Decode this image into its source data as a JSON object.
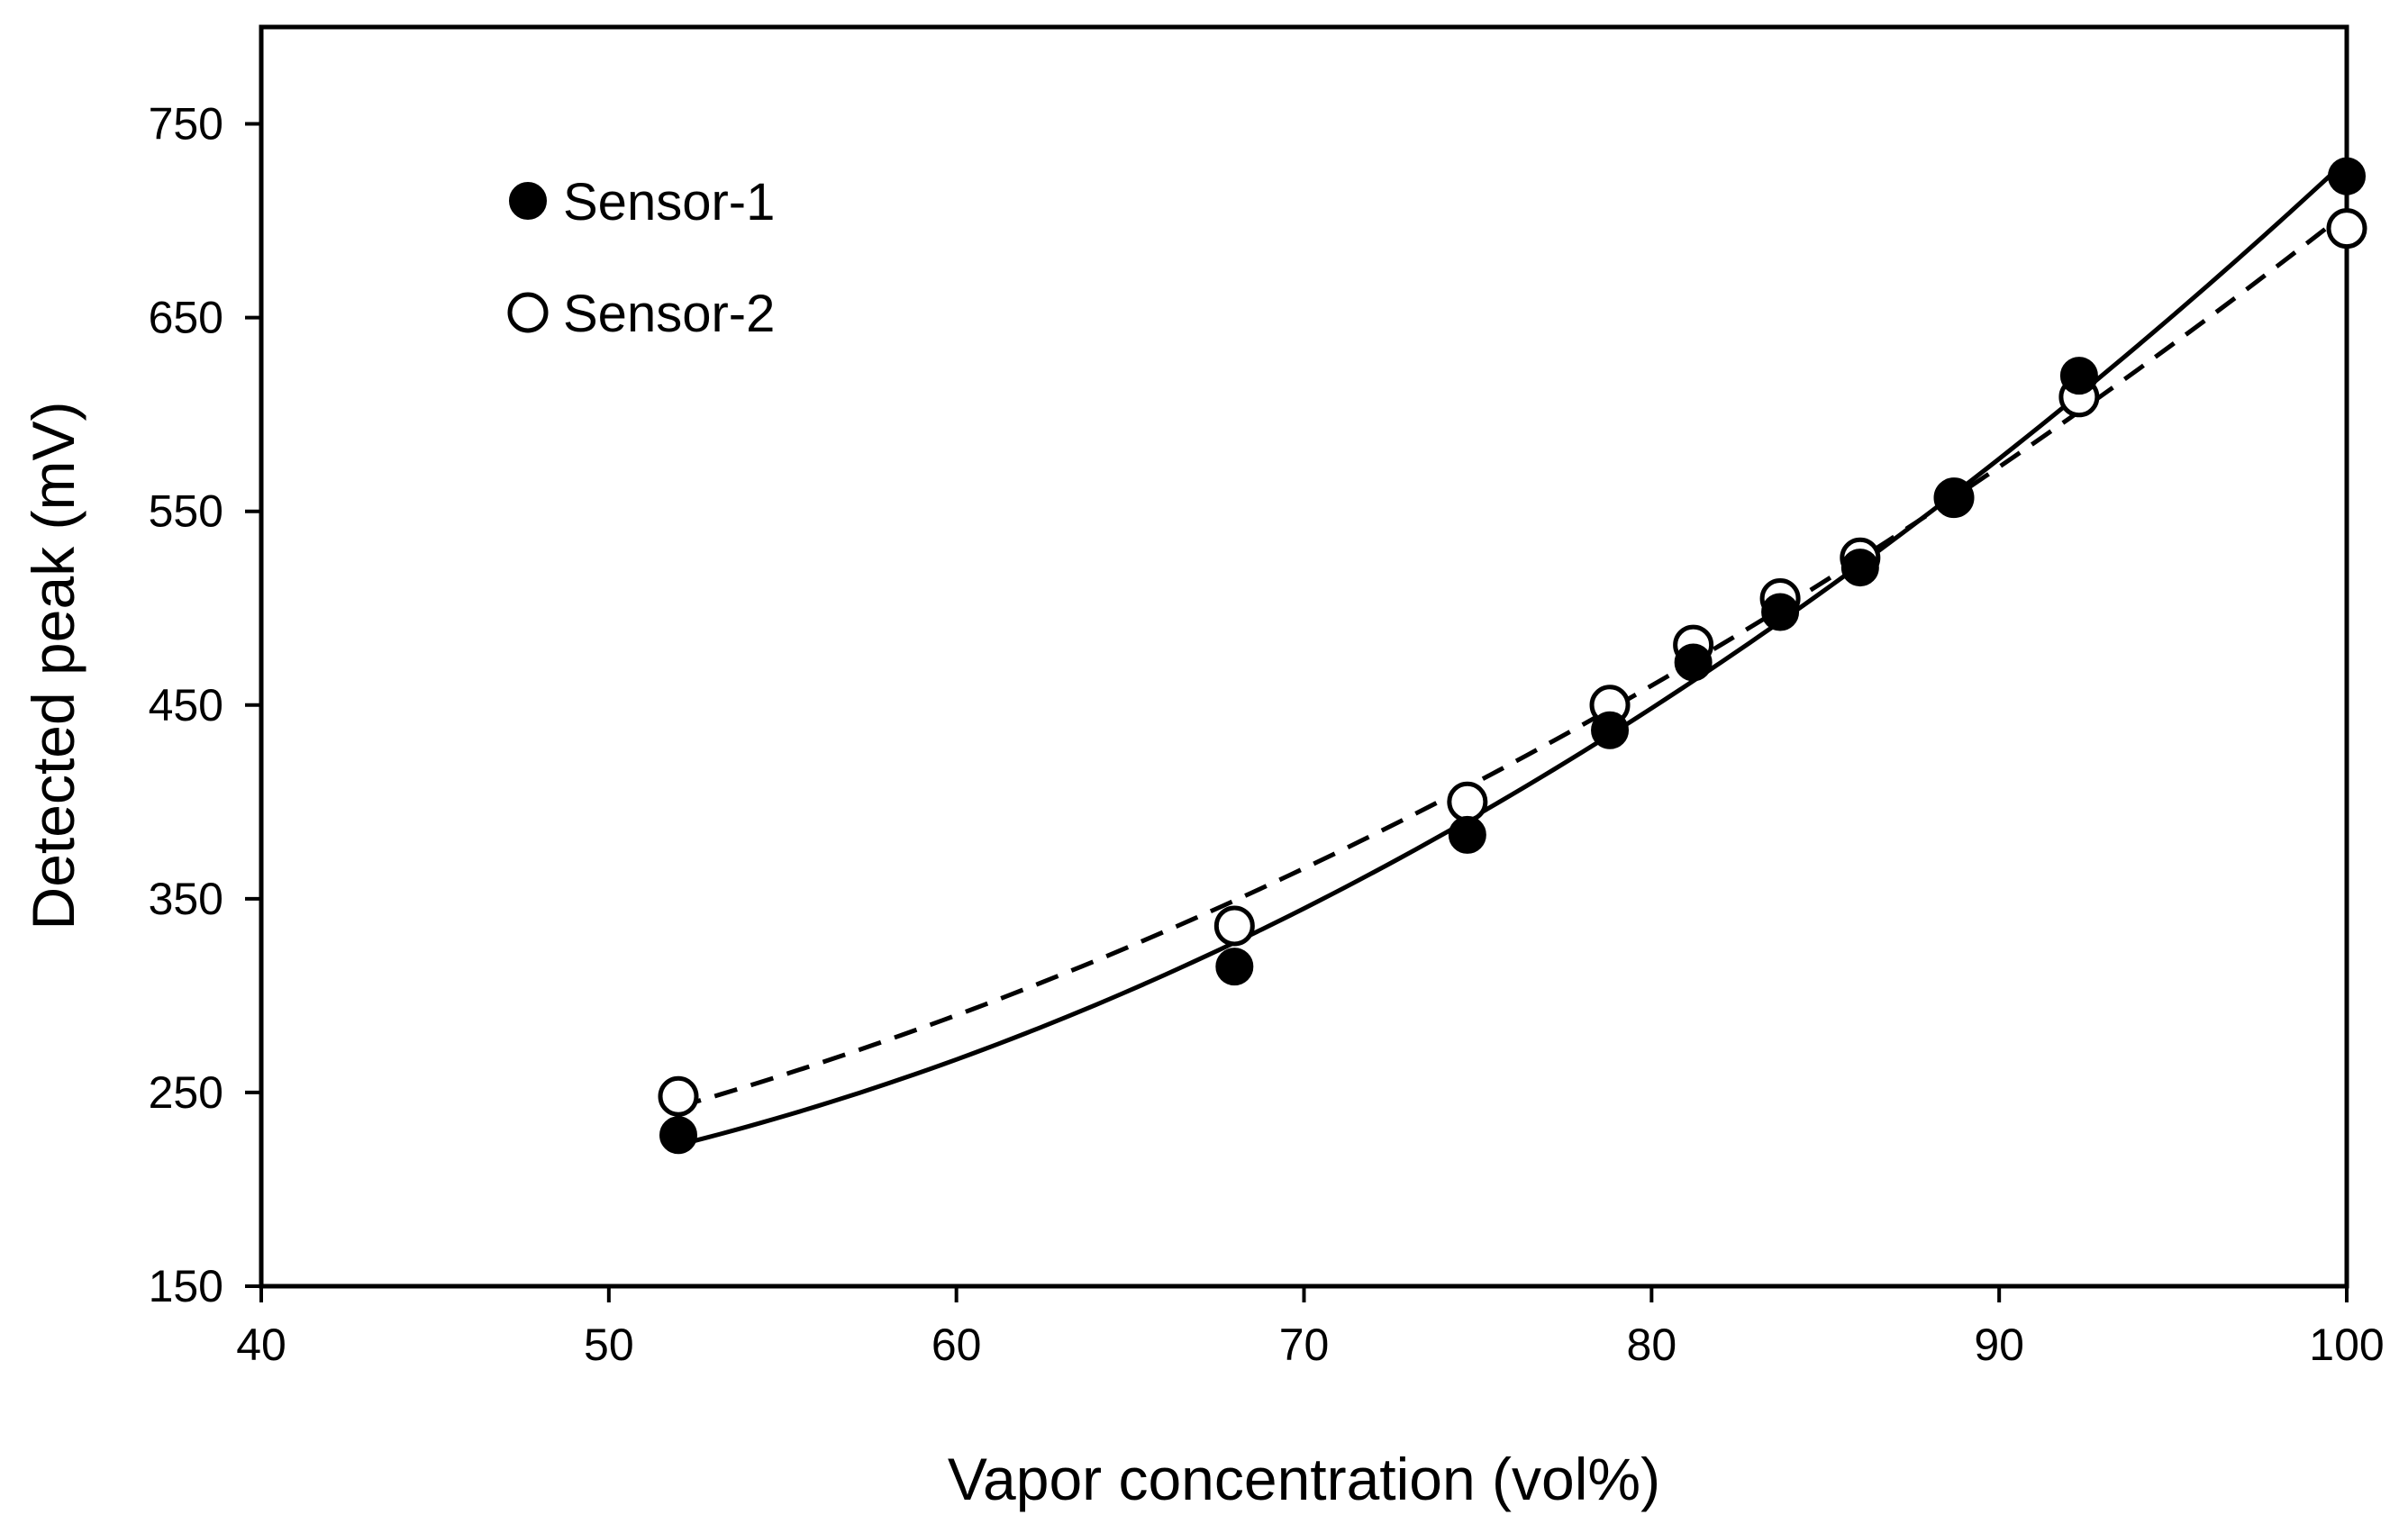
{
  "chart_data": {
    "type": "scatter",
    "title": "",
    "xlabel": "Vapor concentration (vol%)",
    "ylabel": "Detected peak (mV)",
    "xlim": [
      40,
      100
    ],
    "ylim": [
      150,
      800
    ],
    "xticks": [
      40,
      50,
      60,
      70,
      80,
      90,
      100
    ],
    "yticks": [
      150,
      250,
      350,
      450,
      550,
      650,
      750
    ],
    "grid": false,
    "legend_position": "top-left",
    "series": [
      {
        "name": "Sensor-1",
        "marker": "filled-circle",
        "line_style": "solid",
        "color": "#000000",
        "x": [
          52,
          68,
          74.7,
          78.8,
          81.2,
          83.7,
          86,
          88.7,
          92.3,
          100
        ],
        "y": [
          228,
          315,
          383,
          437,
          472,
          498,
          521,
          557,
          620,
          723
        ]
      },
      {
        "name": "Sensor-2",
        "marker": "open-circle",
        "line_style": "dashed",
        "color": "#000000",
        "x": [
          52,
          68,
          74.7,
          78.8,
          81.2,
          83.7,
          86,
          88.7,
          92.3,
          100
        ],
        "y": [
          248,
          336,
          400,
          450,
          481,
          505,
          526,
          557,
          609,
          696
        ]
      }
    ]
  }
}
